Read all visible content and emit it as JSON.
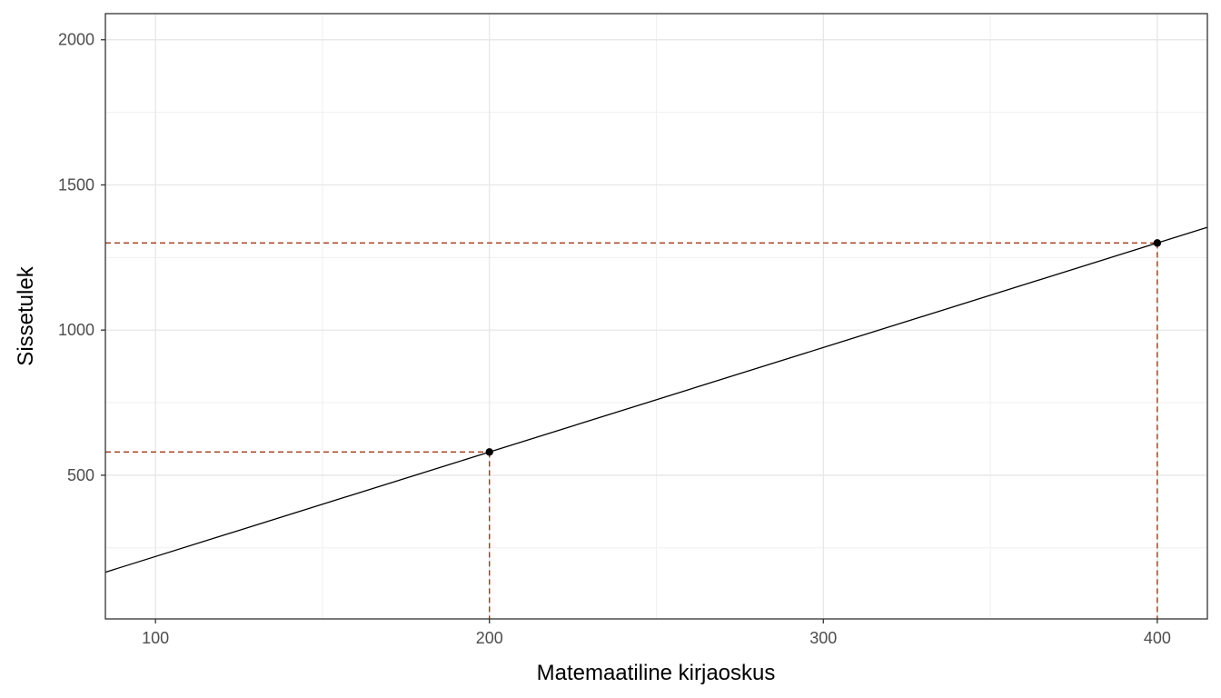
{
  "chart_data": {
    "type": "line",
    "title": "",
    "xlabel": "Matemaatiline kirjaoskus",
    "ylabel": "Sissetulek",
    "xlim": [
      85,
      415
    ],
    "ylim": [
      5,
      2090
    ],
    "x_ticks": [
      100,
      200,
      300,
      400
    ],
    "x_tick_labels": [
      "100",
      "200",
      "300",
      "400"
    ],
    "y_ticks": [
      500,
      1000,
      1500,
      2000
    ],
    "y_tick_labels": [
      "500",
      "1000",
      "1500",
      "2000"
    ],
    "grid": true,
    "line": {
      "slope": 3.6,
      "intercept": -140
    },
    "points": [
      {
        "x": 200,
        "y": 580
      },
      {
        "x": 400,
        "y": 1300
      }
    ],
    "guide_color": "#a0391a",
    "line_color": "#000000"
  }
}
